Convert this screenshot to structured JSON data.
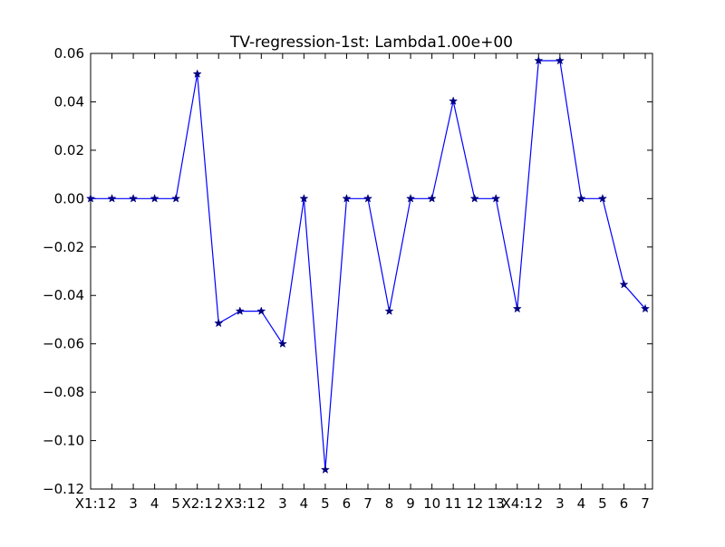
{
  "chart_data": {
    "type": "line",
    "title": "TV-regression-1st: Lambda1.00e+00",
    "xlabel": "",
    "ylabel": "",
    "ylim": [
      -0.12,
      0.06
    ],
    "yticks": [
      -0.12,
      -0.1,
      -0.08,
      -0.06,
      -0.04,
      -0.02,
      0.0,
      0.02,
      0.04,
      0.06
    ],
    "ytick_labels": [
      "−0.12",
      "−0.10",
      "−0.08",
      "−0.06",
      "−0.04",
      "−0.02",
      "0.00",
      "0.02",
      "0.04",
      "0.06"
    ],
    "categories": [
      "X1:1",
      "2",
      "3",
      "4",
      "5",
      "X2:1",
      "2",
      "X3:1",
      "2",
      "3",
      "4",
      "5",
      "6",
      "7",
      "8",
      "9",
      "10",
      "11",
      "12",
      "13",
      "X4:1",
      "2",
      "3",
      "4",
      "5",
      "6",
      "7"
    ],
    "series": [
      {
        "values": [
          0.0,
          0.0,
          0.0,
          0.0,
          0.0,
          0.0515,
          -0.0515,
          -0.0465,
          -0.0465,
          -0.06,
          0.0,
          -0.112,
          0.0,
          0.0,
          -0.0465,
          0.0,
          0.0,
          0.0403,
          0.0,
          0.0,
          -0.0455,
          0.057,
          0.057,
          0.0,
          0.0,
          -0.0355,
          -0.0455
        ],
        "color": "#0000ff",
        "marker": "star",
        "marker_color": "#000080"
      }
    ],
    "grid": false,
    "legend": "none"
  }
}
